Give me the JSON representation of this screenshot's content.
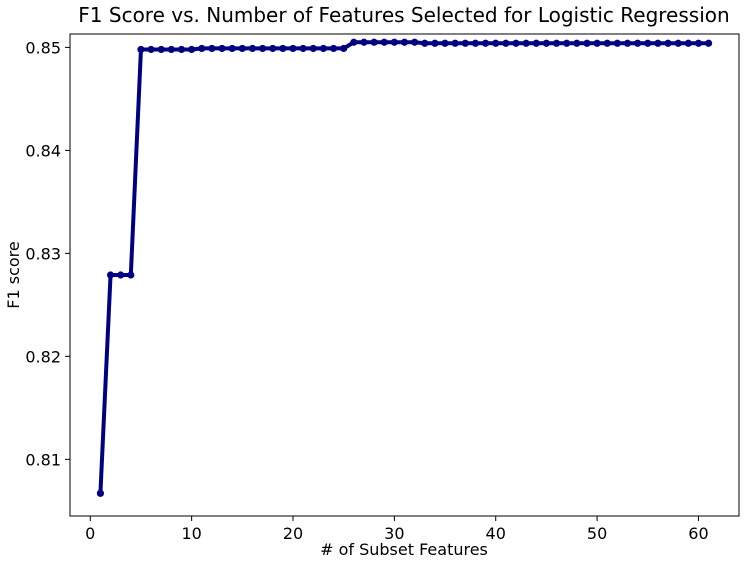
{
  "chart_data": {
    "type": "line",
    "title": "F1 Score vs. Number of Features Selected for Logistic Regression",
    "xlabel": "# of Subset Features",
    "ylabel": "F1 score",
    "xlim": [
      -2,
      64
    ],
    "ylim": [
      0.8045,
      0.8513
    ],
    "xticks": [
      0,
      10,
      20,
      30,
      40,
      50,
      60
    ],
    "yticks": [
      0.81,
      0.82,
      0.83,
      0.84,
      0.85
    ],
    "ytick_labels": [
      "0.81",
      "0.82",
      "0.83",
      "0.84",
      "0.85"
    ],
    "grid": false,
    "line_color": "#000080",
    "series": [
      {
        "x": [
          1,
          2,
          3,
          4,
          5,
          6,
          7,
          8,
          9,
          10,
          11,
          12,
          13,
          14,
          15,
          16,
          17,
          18,
          19,
          20,
          21,
          22,
          23,
          24,
          25,
          26,
          27,
          28,
          29,
          30,
          31,
          32,
          33,
          34,
          35,
          36,
          37,
          38,
          39,
          40,
          41,
          42,
          43,
          44,
          45,
          46,
          47,
          48,
          49,
          50,
          51,
          52,
          53,
          54,
          55,
          56,
          57,
          58,
          59,
          60,
          61
        ],
        "values": [
          0.8067,
          0.8279,
          0.8279,
          0.8279,
          0.8498,
          0.8498,
          0.8498,
          0.8498,
          0.8498,
          0.8498,
          0.8499,
          0.8499,
          0.8499,
          0.8499,
          0.8499,
          0.8499,
          0.8499,
          0.8499,
          0.8499,
          0.8499,
          0.8499,
          0.8499,
          0.8499,
          0.8499,
          0.8499,
          0.8505,
          0.8505,
          0.8505,
          0.8505,
          0.8505,
          0.8505,
          0.8505,
          0.8504,
          0.8504,
          0.8504,
          0.8504,
          0.8504,
          0.8504,
          0.8504,
          0.8504,
          0.8504,
          0.8504,
          0.8504,
          0.8504,
          0.8504,
          0.8504,
          0.8504,
          0.8504,
          0.8504,
          0.8504,
          0.8504,
          0.8504,
          0.8504,
          0.8504,
          0.8504,
          0.8504,
          0.8504,
          0.8504,
          0.8504,
          0.8504,
          0.8504
        ]
      }
    ]
  }
}
